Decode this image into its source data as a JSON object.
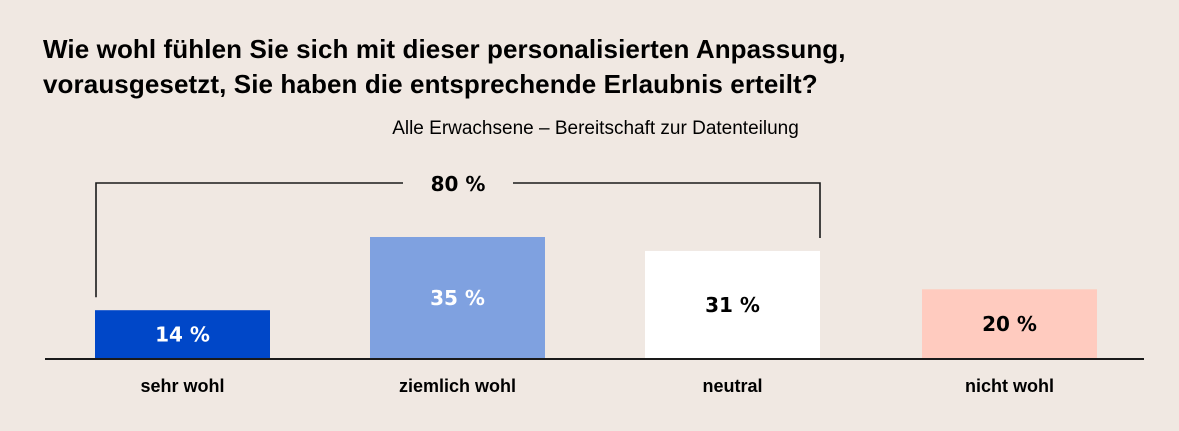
{
  "title_lines": [
    "Wie wohl fühlen Sie sich mit dieser personalisierten Anpassung,",
    "vorausgesetzt, Sie haben die entsprechende Erlaubnis erteilt?"
  ],
  "subtitle": "Alle Erwachsene – Bereitschaft zur Datenteilung",
  "chart_data": {
    "type": "bar",
    "title": "Wie wohl fühlen Sie sich mit dieser personalisierten Anpassung, vorausgesetzt, Sie haben die entsprechende Erlaubnis erteilt?",
    "subtitle": "Alle Erwachsene – Bereitschaft zur Datenteilung",
    "categories": [
      "sehr wohl",
      "ziemlich wohl",
      "neutral",
      "nicht wohl"
    ],
    "values": [
      14,
      35,
      31,
      20
    ],
    "value_labels": [
      "14 %",
      "35 %",
      "31 %",
      "20 %"
    ],
    "colors": [
      "#0047C8",
      "#7FA1E0",
      "#FFFFFF",
      "#FFCBBF"
    ],
    "label_colors": [
      "#FFFFFF",
      "#FFFFFF",
      "#000000",
      "#000000"
    ],
    "ylim": [
      0,
      40
    ],
    "grid": false,
    "xlabel": "",
    "ylabel": "",
    "annotation": {
      "text": "80 %",
      "spans": [
        "sehr wohl",
        "ziemlich wohl",
        "neutral"
      ],
      "value": 80
    }
  },
  "colors": {
    "background": "#F0E8E2",
    "axis": "#1a1a1a"
  }
}
